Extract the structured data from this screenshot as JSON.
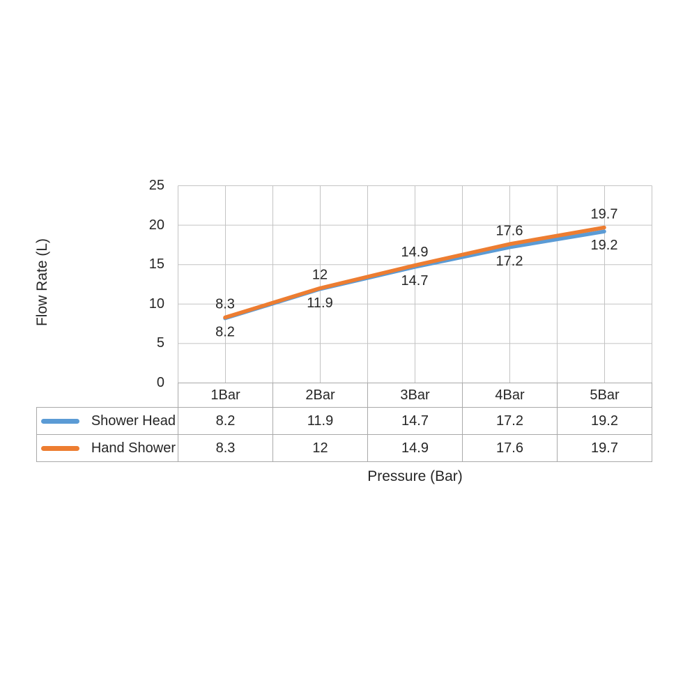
{
  "chart_data": {
    "type": "line",
    "title": "",
    "xlabel": "Pressure (Bar)",
    "ylabel": "Flow Rate (L)",
    "categories": [
      "1Bar",
      "2Bar",
      "3Bar",
      "4Bar",
      "5Bar"
    ],
    "series": [
      {
        "name": "Shower Head",
        "color": "#5B9BD5",
        "values": [
          8.2,
          11.9,
          14.7,
          17.2,
          19.2
        ],
        "value_labels": [
          "8.2",
          "11.9",
          "14.7",
          "17.2",
          "19.2"
        ],
        "label_position": "below"
      },
      {
        "name": "Hand Shower",
        "color": "#ED7D31",
        "values": [
          8.3,
          12,
          14.9,
          17.6,
          19.7
        ],
        "value_labels": [
          "8.3",
          "12",
          "14.9",
          "17.6",
          "19.7"
        ],
        "label_position": "above"
      }
    ],
    "ylim": [
      0,
      25
    ],
    "y_ticks": [
      25,
      20,
      15,
      10,
      5,
      0
    ],
    "grid": true,
    "x_gridlines_per_category": 2,
    "legend_position": "data-table-left",
    "data_table_shown": true
  },
  "styles": {
    "gridline_color": "#c3c3c3",
    "table_border_color": "#a9a9a9",
    "text_color": "#262626",
    "background": "#ffffff",
    "line_width": 5.5
  }
}
